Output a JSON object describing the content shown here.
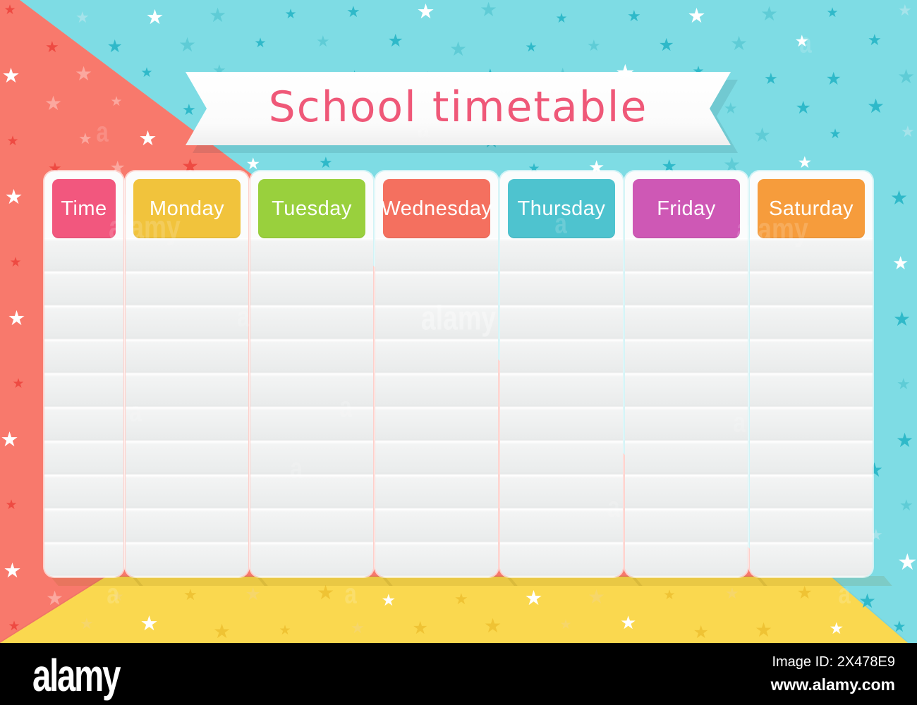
{
  "title": {
    "text": "School timetable",
    "color": "#EF5878"
  },
  "ribbon": {
    "background": "#FCFCFC"
  },
  "timetable": {
    "header_text_color": "#FFFFFF",
    "rows_per_column": 10,
    "columns": [
      {
        "label": "Time",
        "color": "#F2577E"
      },
      {
        "label": "Monday",
        "color": "#F1C33C"
      },
      {
        "label": "Tuesday",
        "color": "#99D03D"
      },
      {
        "label": "Wednesday",
        "color": "#F4705F"
      },
      {
        "label": "Thursday",
        "color": "#4EC3CF"
      },
      {
        "label": "Friday",
        "color": "#CE58B5"
      },
      {
        "label": "Saturday",
        "color": "#F69C3C"
      }
    ]
  },
  "background": {
    "blue": "#7EDCE4",
    "red_triangle": "#F8796C",
    "yellow_bottom": "#FAD84F",
    "stars": {
      "blue_region": [
        "#2FB9C9",
        "#FFFFFF",
        "#5FCCD6",
        "#A5E3EA"
      ],
      "red_region": [
        "#EE4A42",
        "#FBA89F",
        "#FFFFFF"
      ],
      "yellow_region": [
        "#EFC334",
        "#FFFFFF",
        "#F6D66A"
      ]
    }
  },
  "watermark": {
    "brand": "alamy",
    "letter": "a"
  },
  "footer": {
    "logo_text": "alamy",
    "image_id": "Image ID: 2X478E9",
    "website": "www.alamy.com",
    "bar_color": "#000000"
  }
}
